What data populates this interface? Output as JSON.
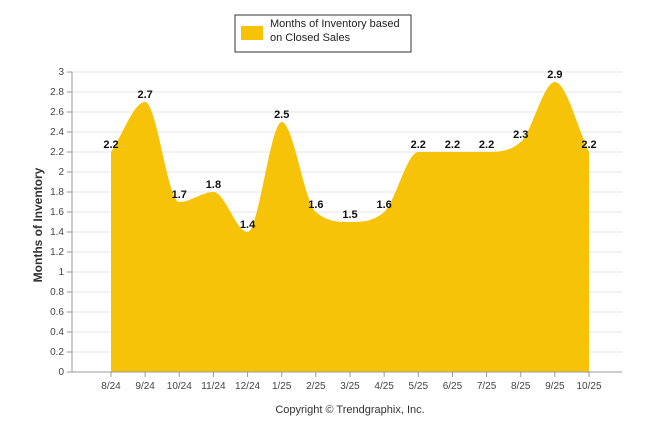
{
  "chart_data": {
    "type": "area",
    "categories": [
      "8/24",
      "9/24",
      "10/24",
      "11/24",
      "12/24",
      "1/25",
      "2/25",
      "3/25",
      "4/25",
      "5/25",
      "6/25",
      "7/25",
      "8/25",
      "9/25",
      "10/25"
    ],
    "series": [
      {
        "name": "Months of Inventory based on Closed Sales",
        "values": [
          2.2,
          2.7,
          1.7,
          1.8,
          1.4,
          2.5,
          1.6,
          1.5,
          1.6,
          2.2,
          2.2,
          2.2,
          2.3,
          2.9,
          2.2
        ]
      }
    ],
    "y_ticks": [
      "0",
      "0.2",
      "0.4",
      "0.6",
      "0.8",
      "1",
      "1.2",
      "1.4",
      "1.6",
      "1.8",
      "2",
      "2.2",
      "2.4",
      "2.6",
      "2.8",
      "3"
    ],
    "ylim": [
      0,
      3
    ],
    "ylabel": "Months of Inventory",
    "xlabel": "",
    "grid": true,
    "legend": {
      "position": "top-center",
      "lines": [
        "Months of Inventory based",
        "on Closed Sales"
      ]
    },
    "color": "#F7C309"
  },
  "footer": {
    "copyright": "Copyright © Trendgraphix, Inc."
  }
}
